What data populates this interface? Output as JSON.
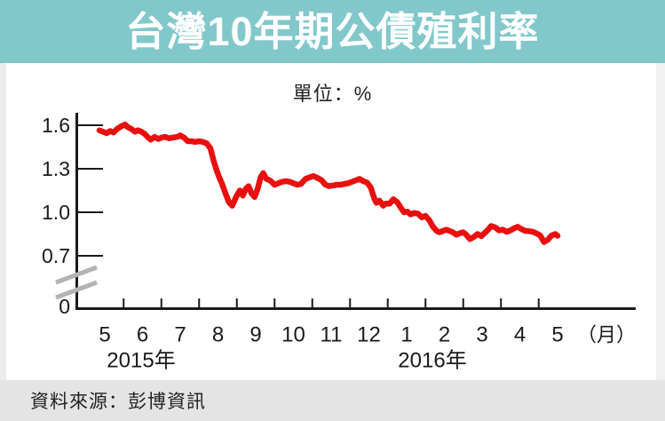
{
  "header": {
    "title": "台灣10年期公債殖利率"
  },
  "chart": {
    "unit_label": "單位：%"
  },
  "footer": {
    "source_label": "資料來源：彭博資訊"
  },
  "colors": {
    "banner_bg": "#82c8cb",
    "banner_text": "#ffffff",
    "line": "#e8100f",
    "axis": "#1a1a1a",
    "axis_break": "#b3b3b3",
    "footer_bg": "#e4e4e4"
  },
  "chart_data": {
    "type": "line",
    "title": "台灣10年期公債殖利率",
    "unit": "%",
    "legend": "none",
    "grid": "off",
    "x_axis": {
      "month_labels": [
        "5",
        "6",
        "7",
        "8",
        "9",
        "10",
        "11",
        "12",
        "1",
        "2",
        "3",
        "4",
        "5"
      ],
      "unit_suffix": "（月）",
      "year_labels": [
        "2015年",
        "2016年"
      ],
      "note": "x unit below = fractional month slots; 0 = start of May 2015 slot, 12-13 = May 2016 slot"
    },
    "y_axis": {
      "tick_labels": [
        "1.6",
        "1.3",
        "1.0",
        "0.7"
      ],
      "tick_values": [
        1.6,
        1.3,
        1.0,
        0.7
      ],
      "zero_label": "0",
      "axis_break_between": [
        0,
        0.7
      ],
      "visible_range": [
        0.7,
        1.65
      ]
    },
    "series": [
      {
        "name": "台灣10年期公債殖利率",
        "color": "#e8100f",
        "points": [
          [
            0.36,
            1.565
          ],
          [
            0.45,
            1.555
          ],
          [
            0.55,
            1.545
          ],
          [
            0.64,
            1.56
          ],
          [
            0.73,
            1.55
          ],
          [
            0.83,
            1.575
          ],
          [
            0.92,
            1.59
          ],
          [
            1.04,
            1.605
          ],
          [
            1.12,
            1.585
          ],
          [
            1.2,
            1.575
          ],
          [
            1.3,
            1.555
          ],
          [
            1.38,
            1.565
          ],
          [
            1.47,
            1.555
          ],
          [
            1.56,
            1.54
          ],
          [
            1.65,
            1.515
          ],
          [
            1.72,
            1.5
          ],
          [
            1.82,
            1.52
          ],
          [
            1.92,
            1.505
          ],
          [
            2.0,
            1.515
          ],
          [
            2.1,
            1.52
          ],
          [
            2.2,
            1.51
          ],
          [
            2.3,
            1.515
          ],
          [
            2.42,
            1.52
          ],
          [
            2.5,
            1.53
          ],
          [
            2.6,
            1.515
          ],
          [
            2.7,
            1.49
          ],
          [
            2.8,
            1.49
          ],
          [
            2.9,
            1.485
          ],
          [
            3.0,
            1.49
          ],
          [
            3.1,
            1.485
          ],
          [
            3.2,
            1.475
          ],
          [
            3.3,
            1.44
          ],
          [
            3.38,
            1.36
          ],
          [
            3.45,
            1.3
          ],
          [
            3.52,
            1.25
          ],
          [
            3.6,
            1.2
          ],
          [
            3.7,
            1.13
          ],
          [
            3.79,
            1.07
          ],
          [
            3.88,
            1.045
          ],
          [
            3.98,
            1.105
          ],
          [
            4.08,
            1.15
          ],
          [
            4.16,
            1.115
          ],
          [
            4.23,
            1.16
          ],
          [
            4.31,
            1.18
          ],
          [
            4.39,
            1.13
          ],
          [
            4.47,
            1.105
          ],
          [
            4.55,
            1.16
          ],
          [
            4.63,
            1.24
          ],
          [
            4.7,
            1.27
          ],
          [
            4.78,
            1.23
          ],
          [
            4.88,
            1.22
          ],
          [
            5.0,
            1.19
          ],
          [
            5.1,
            1.2
          ],
          [
            5.2,
            1.21
          ],
          [
            5.3,
            1.215
          ],
          [
            5.4,
            1.21
          ],
          [
            5.5,
            1.2
          ],
          [
            5.6,
            1.19
          ],
          [
            5.7,
            1.195
          ],
          [
            5.82,
            1.23
          ],
          [
            5.92,
            1.24
          ],
          [
            6.03,
            1.25
          ],
          [
            6.15,
            1.235
          ],
          [
            6.25,
            1.22
          ],
          [
            6.35,
            1.19
          ],
          [
            6.45,
            1.18
          ],
          [
            6.55,
            1.185
          ],
          [
            6.65,
            1.19
          ],
          [
            6.75,
            1.19
          ],
          [
            6.85,
            1.195
          ],
          [
            6.95,
            1.2
          ],
          [
            7.05,
            1.21
          ],
          [
            7.15,
            1.22
          ],
          [
            7.25,
            1.23
          ],
          [
            7.35,
            1.215
          ],
          [
            7.45,
            1.205
          ],
          [
            7.55,
            1.17
          ],
          [
            7.65,
            1.09
          ],
          [
            7.7,
            1.065
          ],
          [
            7.78,
            1.08
          ],
          [
            7.88,
            1.045
          ],
          [
            7.95,
            1.06
          ],
          [
            8.05,
            1.06
          ],
          [
            8.15,
            1.09
          ],
          [
            8.25,
            1.07
          ],
          [
            8.35,
            1.03
          ],
          [
            8.43,
            1.0
          ],
          [
            8.52,
            1.005
          ],
          [
            8.6,
            0.985
          ],
          [
            8.7,
            0.995
          ],
          [
            8.8,
            0.99
          ],
          [
            8.9,
            0.965
          ],
          [
            9.0,
            0.975
          ],
          [
            9.1,
            0.945
          ],
          [
            9.2,
            0.9
          ],
          [
            9.3,
            0.87
          ],
          [
            9.37,
            0.862
          ],
          [
            9.45,
            0.87
          ],
          [
            9.55,
            0.88
          ],
          [
            9.65,
            0.87
          ],
          [
            9.72,
            0.862
          ],
          [
            9.82,
            0.845
          ],
          [
            9.9,
            0.855
          ],
          [
            10.0,
            0.862
          ],
          [
            10.08,
            0.845
          ],
          [
            10.18,
            0.815
          ],
          [
            10.28,
            0.83
          ],
          [
            10.38,
            0.85
          ],
          [
            10.48,
            0.835
          ],
          [
            10.58,
            0.86
          ],
          [
            10.66,
            0.88
          ],
          [
            10.74,
            0.905
          ],
          [
            10.85,
            0.895
          ],
          [
            10.95,
            0.875
          ],
          [
            11.05,
            0.88
          ],
          [
            11.15,
            0.865
          ],
          [
            11.25,
            0.875
          ],
          [
            11.35,
            0.89
          ],
          [
            11.44,
            0.9
          ],
          [
            11.54,
            0.885
          ],
          [
            11.64,
            0.872
          ],
          [
            11.74,
            0.87
          ],
          [
            11.84,
            0.865
          ],
          [
            11.94,
            0.855
          ],
          [
            12.04,
            0.84
          ],
          [
            12.14,
            0.795
          ],
          [
            12.24,
            0.81
          ],
          [
            12.34,
            0.84
          ],
          [
            12.44,
            0.85
          ],
          [
            12.5,
            0.838
          ]
        ]
      }
    ]
  }
}
